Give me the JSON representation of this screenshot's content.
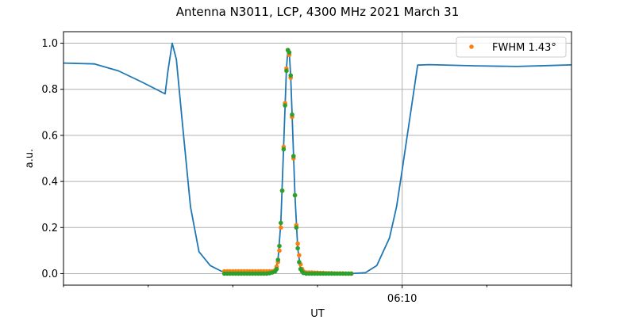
{
  "chart_data": {
    "type": "line",
    "title": "Antenna N3011, LCP, 4300 MHz 2021 March 31",
    "xlabel": "UT",
    "ylabel": "a.u.",
    "xlim": [
      "06:06:00",
      "06:12:00"
    ],
    "ylim": [
      -0.05,
      1.05
    ],
    "x_major_ticks": [
      {
        "time": "06:10:00",
        "label": "06:10"
      }
    ],
    "x_minor_ticks": [
      "06:06:00",
      "06:07:00",
      "06:08:00",
      "06:09:00",
      "06:11:00",
      "06:12:00"
    ],
    "y_ticks": [
      "0.0",
      "0.2",
      "0.4",
      "0.6",
      "0.8",
      "1.0"
    ],
    "grid": true,
    "legend_position": "top-right",
    "series": [
      {
        "color": "#1f77b4",
        "style": "line",
        "x": [
          "06:06:00",
          "06:06:22",
          "06:06:39",
          "06:06:56",
          "06:07:12",
          "06:07:14",
          "06:07:17",
          "06:07:20",
          "06:07:24",
          "06:07:30",
          "06:07:36",
          "06:07:44",
          "06:07:52",
          "06:07:58",
          "06:08:26",
          "06:08:30",
          "06:08:32",
          "06:08:34",
          "06:08:36",
          "06:08:38",
          "06:08:39",
          "06:08:40",
          "06:08:41",
          "06:08:42",
          "06:08:44",
          "06:08:46",
          "06:08:48",
          "06:08:50",
          "06:08:56",
          "06:09:22",
          "06:09:34",
          "06:09:42",
          "06:09:51",
          "06:09:56",
          "06:10:00",
          "06:10:07",
          "06:10:11",
          "06:10:19",
          "06:10:52",
          "06:11:21",
          "06:11:43",
          "06:12:00"
        ],
        "y": [
          0.914,
          0.91,
          0.88,
          0.83,
          0.78,
          0.88,
          1.0,
          0.93,
          0.67,
          0.29,
          0.095,
          0.035,
          0.01,
          0.005,
          0.0,
          0.01,
          0.06,
          0.22,
          0.55,
          0.89,
          0.97,
          0.96,
          0.86,
          0.69,
          0.34,
          0.11,
          0.02,
          0.005,
          0.0,
          0.0,
          0.004,
          0.035,
          0.155,
          0.29,
          0.45,
          0.74,
          0.905,
          0.907,
          0.902,
          0.899,
          0.903,
          0.906
        ]
      },
      {
        "name": "FWHM 1.43$^\\circ$",
        "legend_label": "FWHM 1.43°",
        "color": "#ff7f0e",
        "style": "points",
        "x": [
          "06:07:54",
          "06:07:56",
          "06:07:58",
          "06:08:00",
          "06:08:02",
          "06:08:04",
          "06:08:06",
          "06:08:08",
          "06:08:10",
          "06:08:12",
          "06:08:14",
          "06:08:16",
          "06:08:18",
          "06:08:20",
          "06:08:22",
          "06:08:24",
          "06:08:26",
          "06:08:28",
          "06:08:30",
          "06:08:31",
          "06:08:32",
          "06:08:33",
          "06:08:34",
          "06:08:35",
          "06:08:36",
          "06:08:37",
          "06:08:38",
          "06:08:39",
          "06:08:40",
          "06:08:41",
          "06:08:42",
          "06:08:43",
          "06:08:44",
          "06:08:45",
          "06:08:46",
          "06:08:47",
          "06:08:48",
          "06:08:49",
          "06:08:50",
          "06:08:52",
          "06:08:54",
          "06:08:56",
          "06:08:58",
          "06:09:00",
          "06:09:02",
          "06:09:04",
          "06:09:06",
          "06:09:08",
          "06:09:10",
          "06:09:12",
          "06:09:14",
          "06:09:16",
          "06:09:18",
          "06:09:20",
          "06:09:22",
          "06:09:24"
        ],
        "y": [
          0.01,
          0.01,
          0.01,
          0.01,
          0.01,
          0.01,
          0.01,
          0.01,
          0.01,
          0.01,
          0.01,
          0.01,
          0.01,
          0.01,
          0.01,
          0.01,
          0.01,
          0.01,
          0.015,
          0.03,
          0.05,
          0.1,
          0.2,
          0.36,
          0.55,
          0.74,
          0.89,
          0.97,
          0.95,
          0.85,
          0.68,
          0.5,
          0.34,
          0.21,
          0.13,
          0.08,
          0.04,
          0.02,
          0.01,
          0.005,
          0.005,
          0.005,
          0.004,
          0.004,
          0.003,
          0.003,
          0.002,
          0.002,
          0.002,
          0.001,
          0.001,
          0.001,
          0.001,
          0.0,
          0.0,
          0.0
        ]
      },
      {
        "color": "#2ca02c",
        "style": "points",
        "x": [
          "06:07:54",
          "06:07:56",
          "06:07:58",
          "06:08:00",
          "06:08:02",
          "06:08:04",
          "06:08:06",
          "06:08:08",
          "06:08:10",
          "06:08:12",
          "06:08:14",
          "06:08:16",
          "06:08:18",
          "06:08:20",
          "06:08:22",
          "06:08:24",
          "06:08:26",
          "06:08:28",
          "06:08:30",
          "06:08:31",
          "06:08:32",
          "06:08:33",
          "06:08:34",
          "06:08:35",
          "06:08:36",
          "06:08:37",
          "06:08:38",
          "06:08:39",
          "06:08:40",
          "06:08:41",
          "06:08:42",
          "06:08:43",
          "06:08:44",
          "06:08:45",
          "06:08:46",
          "06:08:47",
          "06:08:48",
          "06:08:49",
          "06:08:50",
          "06:08:52",
          "06:08:54",
          "06:08:56",
          "06:08:58",
          "06:09:00",
          "06:09:02",
          "06:09:04",
          "06:09:06",
          "06:09:08",
          "06:09:10",
          "06:09:12",
          "06:09:14",
          "06:09:16",
          "06:09:18",
          "06:09:20",
          "06:09:22",
          "06:09:24"
        ],
        "y": [
          0.0,
          0.0,
          0.0,
          0.0,
          0.0,
          0.0,
          0.0,
          0.0,
          0.0,
          0.0,
          0.0,
          0.0,
          0.0,
          0.0,
          0.0,
          0.0,
          0.002,
          0.005,
          0.01,
          0.02,
          0.06,
          0.12,
          0.22,
          0.36,
          0.54,
          0.73,
          0.88,
          0.97,
          0.96,
          0.86,
          0.69,
          0.51,
          0.34,
          0.2,
          0.11,
          0.05,
          0.02,
          0.01,
          0.003,
          0.0,
          0.0,
          0.0,
          0.0,
          0.0,
          0.0,
          0.0,
          0.0,
          0.0,
          0.0,
          0.0,
          0.0,
          0.0,
          0.0,
          0.0,
          0.0,
          0.0
        ]
      }
    ]
  }
}
